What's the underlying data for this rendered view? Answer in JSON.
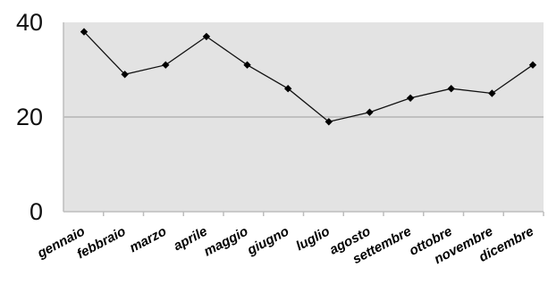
{
  "chart_data": {
    "type": "line",
    "title": "",
    "xlabel": "",
    "ylabel": "",
    "categories": [
      "gennaio",
      "febbraio",
      "marzo",
      "aprile",
      "maggio",
      "giugno",
      "luglio",
      "agosto",
      "settembre",
      "ottobre",
      "novembre",
      "dicembre"
    ],
    "series": [
      {
        "values": [
          38,
          29,
          31,
          37,
          31,
          26,
          19,
          21,
          24,
          26,
          25,
          31
        ]
      }
    ],
    "ylim": [
      0,
      40
    ],
    "yticks": [
      "0",
      "20",
      "40"
    ],
    "grid": true,
    "legend": "none",
    "colors": {
      "plot_background": "#e3e3e3",
      "line": "#111111",
      "marker": "#000000",
      "gridline": "#c0c0c0"
    },
    "marker": "diamond"
  }
}
